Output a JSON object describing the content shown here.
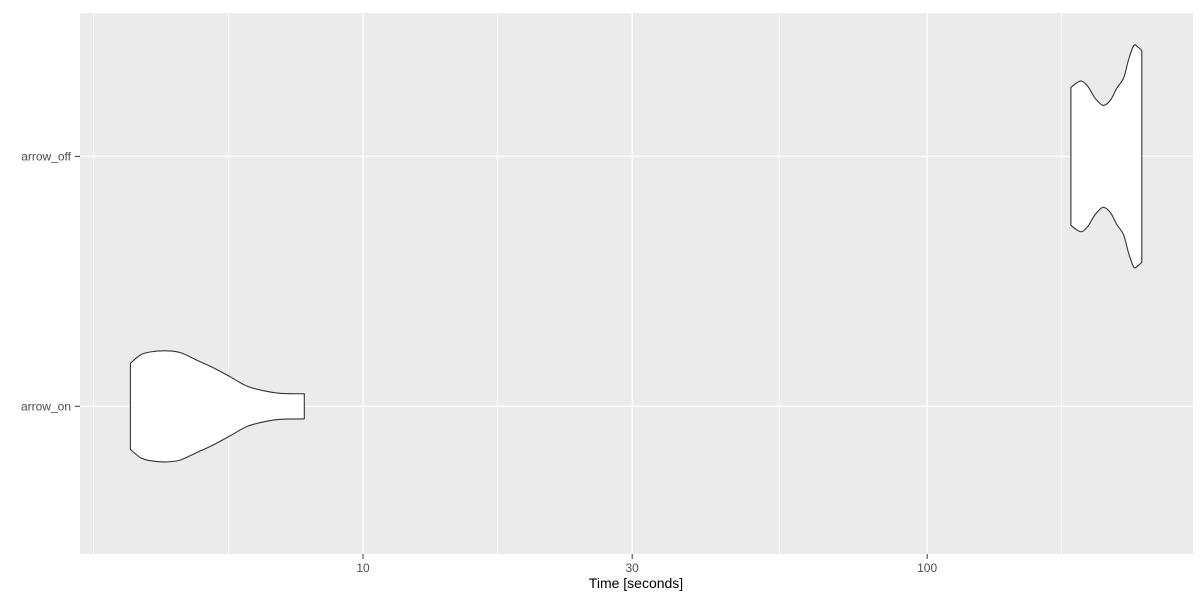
{
  "chart_data": {
    "type": "violin",
    "title": "",
    "xlabel": "Time [seconds]",
    "ylabel": "",
    "x_scale": "log10",
    "xlim": [
      3.15,
      296
    ],
    "grid": true,
    "legend": "none",
    "x_major_ticks": [
      {
        "value": 10,
        "label": "10"
      },
      {
        "value": 30,
        "label": "30"
      },
      {
        "value": 100,
        "label": "100"
      }
    ],
    "x_minor_breaks": [
      3.33,
      5.77,
      17.32,
      54.77,
      173.2,
      300
    ],
    "categories": [
      {
        "label": "arrow_off",
        "pos_frac": 0.265
      },
      {
        "label": "arrow_on",
        "pos_frac": 0.727
      }
    ],
    "series": [
      {
        "name": "arrow_off",
        "category_index": 0,
        "time_range_seconds": [
          179.8,
          240.2
        ],
        "t": [
          179.8,
          184.0,
          188.1,
          193.0,
          198.5,
          205.0,
          211.2,
          217.0,
          223.0,
          227.5,
          232.5,
          236.5,
          240.2
        ],
        "w": [
          0.615,
          0.655,
          0.672,
          0.62,
          0.52,
          0.455,
          0.5,
          0.61,
          0.7,
          0.86,
          0.99,
          0.975,
          0.945
        ]
      },
      {
        "name": "arrow_on",
        "category_index": 1,
        "time_range_seconds": [
          3.87,
          7.87
        ],
        "t": [
          3.87,
          4.03,
          4.19,
          4.46,
          4.74,
          5.07,
          5.42,
          5.81,
          6.22,
          6.66,
          7.13,
          7.87
        ],
        "w": [
          0.384,
          0.458,
          0.485,
          0.496,
          0.48,
          0.413,
          0.346,
          0.264,
          0.181,
          0.139,
          0.116,
          0.112
        ]
      }
    ],
    "colors": {
      "page_bg": "#FFFFFF",
      "panel_bg": "#EBEBEB",
      "grid": "#FFFFFF",
      "violin_fill": "#FFFFFF",
      "violin_stroke": "#333333",
      "tick_mark": "#333333",
      "tick_label": "#4D4D4D",
      "axis_title": "#000000"
    }
  }
}
